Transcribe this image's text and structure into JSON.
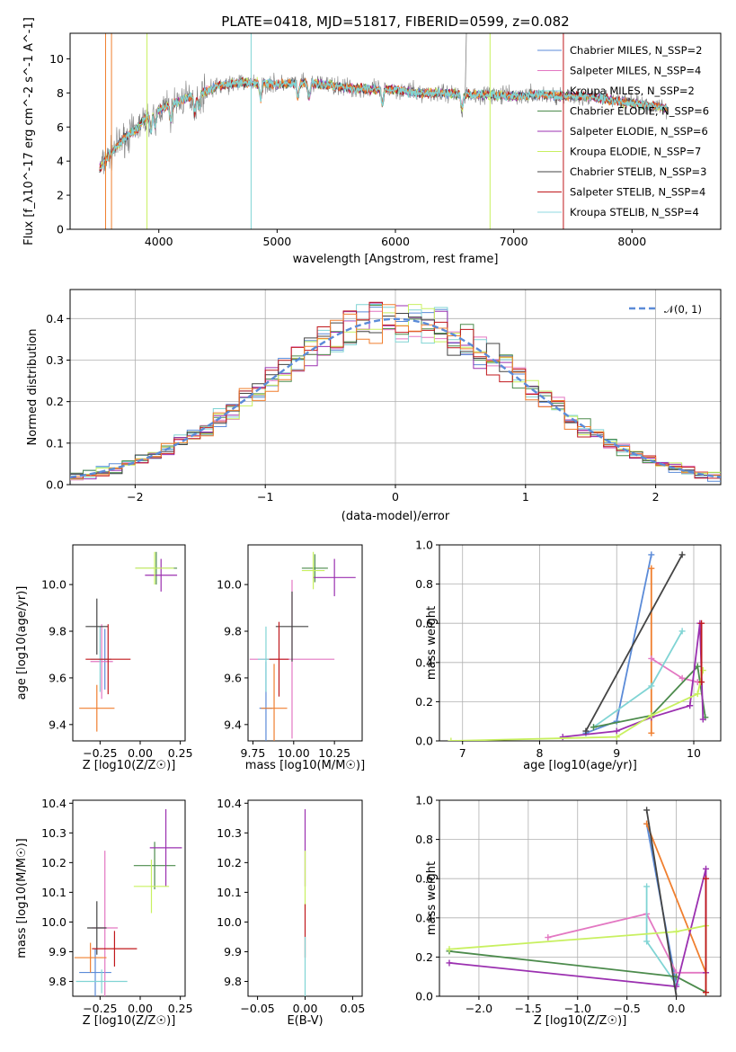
{
  "title": "PLATE=0418, MJD=51817, FIBERID=0599, z=0.082",
  "colors": {
    "c1": "#5b8bd8",
    "c2": "#e377c2",
    "c3": "#80d4d4",
    "c4": "#4c8b4c",
    "c5": "#9b30b0",
    "c6": "#c8f060",
    "c7": "#444444",
    "c8": "#c0181c",
    "c9": "#8fd8e0",
    "orange": "#f07f2f",
    "gray": "#7f7f7f"
  },
  "chart_data": [
    {
      "id": "spectrum",
      "type": "line",
      "xlabel": "wavelength [Angstrom, rest frame]",
      "ylabel": "Flux [f_λ10^-17 erg cm^-2 s^-1 A^-1]",
      "xlim": [
        3250,
        8750
      ],
      "ylim": [
        0,
        11.5
      ],
      "xticks": [
        4000,
        5000,
        6000,
        7000,
        8000
      ],
      "yticks": [
        0,
        2,
        4,
        6,
        8,
        10
      ],
      "grid": false,
      "legend_position": "top-right",
      "legend": [
        {
          "name": "Chabrier MILES, N_SSP=2",
          "color": "#5b8bd8"
        },
        {
          "name": "Salpeter MILES, N_SSP=4",
          "color": "#e377c2"
        },
        {
          "name": "Kroupa MILES, N_SSP=2",
          "color": "#80d4d4"
        },
        {
          "name": "Chabrier ELODIE, N_SSP=6",
          "color": "#4c8b4c"
        },
        {
          "name": "Salpeter ELODIE, N_SSP=6",
          "color": "#9b30b0"
        },
        {
          "name": "Kroupa ELODIE, N_SSP=7",
          "color": "#c8f060"
        },
        {
          "name": "Chabrier STELIB, N_SSP=3",
          "color": "#444444"
        },
        {
          "name": "Salpeter STELIB, N_SSP=4",
          "color": "#c0181c"
        },
        {
          "name": "Kroupa STELIB, N_SSP=4",
          "color": "#8fd8e0"
        }
      ],
      "continuum": [
        [
          3500,
          3.6
        ],
        [
          3600,
          4.5
        ],
        [
          3700,
          5.3
        ],
        [
          3800,
          5.8
        ],
        [
          3900,
          6.6
        ],
        [
          4000,
          7.0
        ],
        [
          4100,
          7.3
        ],
        [
          4200,
          7.6
        ],
        [
          4300,
          7.8
        ],
        [
          4400,
          8.1
        ],
        [
          4500,
          8.4
        ],
        [
          4700,
          8.6
        ],
        [
          4800,
          8.6
        ],
        [
          5000,
          8.5
        ],
        [
          5200,
          8.6
        ],
        [
          5400,
          8.5
        ],
        [
          5600,
          8.3
        ],
        [
          5800,
          8.2
        ],
        [
          6000,
          8.2
        ],
        [
          6200,
          8.0
        ],
        [
          6400,
          8.0
        ],
        [
          6600,
          7.9
        ],
        [
          6800,
          7.9
        ],
        [
          7000,
          7.8
        ],
        [
          7200,
          7.9
        ],
        [
          7400,
          7.8
        ],
        [
          7600,
          7.8
        ],
        [
          7800,
          7.6
        ],
        [
          8000,
          7.4
        ],
        [
          8200,
          7.2
        ],
        [
          8300,
          7.1
        ]
      ]
    },
    {
      "id": "residuals",
      "type": "histogram",
      "xlabel": "(data-model)/error",
      "ylabel": "Normed distribution",
      "xlim": [
        -2.5,
        2.5
      ],
      "ylim": [
        0,
        0.47
      ],
      "xticks": [
        -2,
        -1,
        0,
        1,
        2
      ],
      "yticks": [
        0.0,
        0.1,
        0.2,
        0.3,
        0.4
      ],
      "grid": true,
      "legend_position": "top-right",
      "legend": [
        {
          "name": "𝒩(0, 1)",
          "color": "#5b8bd8",
          "style": "dashed"
        }
      ]
    },
    {
      "id": "age-vs-Z",
      "type": "scatter",
      "xlabel": "Z [log10(Z/Z☉)]",
      "ylabel": "age [log10(age/yr)]",
      "xlim": [
        -0.42,
        0.28
      ],
      "ylim": [
        9.33,
        10.17
      ],
      "xticks": [
        -0.25,
        0.0,
        0.25
      ],
      "yticks": [
        9.4,
        9.6,
        9.8,
        10.0
      ],
      "points": [
        {
          "x": -0.22,
          "y": 9.68,
          "xerr": 0.04,
          "yerr": 0.13,
          "color": "#5b8bd8"
        },
        {
          "x": -0.24,
          "y": 9.67,
          "xerr": 0.07,
          "yerr": 0.16,
          "color": "#e377c2"
        },
        {
          "x": -0.25,
          "y": 9.68,
          "xerr": 0.06,
          "yerr": 0.14,
          "color": "#80d4d4"
        },
        {
          "x": 0.1,
          "y": 10.07,
          "xerr": 0.13,
          "yerr": 0.07,
          "color": "#4c8b4c"
        },
        {
          "x": 0.13,
          "y": 10.04,
          "xerr": 0.1,
          "yerr": 0.07,
          "color": "#9b30b0"
        },
        {
          "x": 0.09,
          "y": 10.07,
          "xerr": 0.12,
          "yerr": 0.07,
          "color": "#c8f060"
        },
        {
          "x": -0.27,
          "y": 9.82,
          "xerr": 0.07,
          "yerr": 0.12,
          "color": "#444444"
        },
        {
          "x": -0.2,
          "y": 9.68,
          "xerr": 0.14,
          "yerr": 0.15,
          "color": "#c0181c"
        },
        {
          "x": -0.27,
          "y": 9.47,
          "xerr": 0.11,
          "yerr": 0.1,
          "color": "#f07f2f"
        }
      ]
    },
    {
      "id": "age-vs-mass",
      "type": "scatter",
      "xlabel": "mass [log10(M/M☉)]",
      "ylabel": "",
      "xlim": [
        9.72,
        10.42
      ],
      "ylim": [
        9.33,
        10.17
      ],
      "xticks": [
        9.75,
        10.0,
        10.25
      ],
      "yticks": [
        9.4,
        9.6,
        9.8,
        10.0
      ],
      "points": [
        {
          "x": 9.83,
          "y": 9.47,
          "xerr": 0.04,
          "yerr": 0.2,
          "color": "#5b8bd8"
        },
        {
          "x": 9.99,
          "y": 9.68,
          "xerr": 0.26,
          "yerr": 0.34,
          "color": "#e377c2"
        },
        {
          "x": 9.83,
          "y": 9.68,
          "xerr": 0.05,
          "yerr": 0.14,
          "color": "#80d4d4"
        },
        {
          "x": 10.13,
          "y": 10.07,
          "xerr": 0.08,
          "yerr": 0.06,
          "color": "#4c8b4c"
        },
        {
          "x": 10.25,
          "y": 10.03,
          "xerr": 0.13,
          "yerr": 0.08,
          "color": "#9b30b0"
        },
        {
          "x": 10.12,
          "y": 10.06,
          "xerr": 0.07,
          "yerr": 0.08,
          "color": "#c8f060"
        },
        {
          "x": 9.99,
          "y": 9.82,
          "xerr": 0.1,
          "yerr": 0.15,
          "color": "#444444"
        },
        {
          "x": 9.91,
          "y": 9.68,
          "xerr": 0.06,
          "yerr": 0.16,
          "color": "#c0181c"
        },
        {
          "x": 9.88,
          "y": 9.47,
          "xerr": 0.08,
          "yerr": 0.19,
          "color": "#f07f2f"
        }
      ]
    },
    {
      "id": "massweight-vs-age",
      "type": "line",
      "xlabel": "age [log10(age/yr)]",
      "ylabel": "mass weight",
      "xlim": [
        6.7,
        10.35
      ],
      "ylim": [
        0,
        1.0
      ],
      "xticks": [
        7,
        8,
        9,
        10
      ],
      "yticks": [
        0.0,
        0.2,
        0.4,
        0.6,
        0.8,
        1.0
      ],
      "grid": true,
      "series": [
        {
          "color": "#5b8bd8",
          "points": [
            [
              8.6,
              0.04
            ],
            [
              9.0,
              0.1
            ],
            [
              9.45,
              0.95
            ]
          ]
        },
        {
          "color": "#f07f2f",
          "points": [
            [
              9.45,
              0.88
            ],
            [
              9.45,
              0.04
            ]
          ]
        },
        {
          "color": "#e377c2",
          "points": [
            [
              9.45,
              0.42
            ],
            [
              9.85,
              0.32
            ],
            [
              10.05,
              0.3
            ]
          ]
        },
        {
          "color": "#80d4d4",
          "points": [
            [
              8.7,
              0.07
            ],
            [
              9.45,
              0.28
            ],
            [
              9.85,
              0.56
            ]
          ]
        },
        {
          "color": "#4c8b4c",
          "points": [
            [
              8.7,
              0.07
            ],
            [
              9.45,
              0.13
            ],
            [
              10.05,
              0.38
            ],
            [
              10.15,
              0.12
            ]
          ]
        },
        {
          "color": "#9b30b0",
          "points": [
            [
              8.3,
              0.02
            ],
            [
              9.0,
              0.05
            ],
            [
              9.45,
              0.12
            ],
            [
              9.95,
              0.18
            ],
            [
              10.08,
              0.6
            ],
            [
              10.12,
              0.11
            ]
          ]
        },
        {
          "color": "#c8f060",
          "points": [
            [
              6.85,
              0.0
            ],
            [
              9.0,
              0.02
            ],
            [
              9.45,
              0.13
            ],
            [
              10.05,
              0.24
            ],
            [
              10.12,
              0.36
            ]
          ]
        },
        {
          "color": "#444444",
          "points": [
            [
              8.6,
              0.05
            ],
            [
              9.85,
              0.95
            ]
          ]
        },
        {
          "color": "#c0181c",
          "points": [
            [
              10.1,
              0.6
            ],
            [
              10.1,
              0.3
            ]
          ]
        }
      ]
    },
    {
      "id": "mass-vs-Z",
      "type": "scatter",
      "xlabel": "Z [log10(Z/Z☉)]",
      "ylabel": "mass [log10(M/M☉)]",
      "xlim": [
        -0.42,
        0.28
      ],
      "ylim": [
        9.75,
        10.41
      ],
      "xticks": [
        -0.25,
        0.0,
        0.25
      ],
      "yticks": [
        9.8,
        9.9,
        10.0,
        10.1,
        10.2,
        10.3,
        10.4
      ],
      "points": [
        {
          "x": -0.28,
          "y": 9.83,
          "xerr": 0.1,
          "yerr": 0.08,
          "color": "#5b8bd8"
        },
        {
          "x": -0.22,
          "y": 9.98,
          "xerr": 0.08,
          "yerr": 0.26,
          "color": "#e377c2"
        },
        {
          "x": -0.24,
          "y": 9.8,
          "xerr": 0.16,
          "yerr": 0.04,
          "color": "#80d4d4"
        },
        {
          "x": 0.09,
          "y": 10.19,
          "xerr": 0.13,
          "yerr": 0.08,
          "color": "#4c8b4c"
        },
        {
          "x": 0.16,
          "y": 10.25,
          "xerr": 0.1,
          "yerr": 0.13,
          "color": "#9b30b0"
        },
        {
          "x": 0.07,
          "y": 10.12,
          "xerr": 0.11,
          "yerr": 0.09,
          "color": "#c8f060"
        },
        {
          "x": -0.27,
          "y": 9.98,
          "xerr": 0.06,
          "yerr": 0.09,
          "color": "#444444"
        },
        {
          "x": -0.16,
          "y": 9.91,
          "xerr": 0.14,
          "yerr": 0.06,
          "color": "#c0181c"
        },
        {
          "x": -0.31,
          "y": 9.88,
          "xerr": 0.1,
          "yerr": 0.05,
          "color": "#f07f2f"
        }
      ]
    },
    {
      "id": "mass-vs-ebv",
      "type": "scatter",
      "xlabel": "E(B-V)",
      "ylabel": "",
      "xlim": [
        -0.06,
        0.06
      ],
      "ylim": [
        9.75,
        10.41
      ],
      "xticks": [
        -0.05,
        0.0,
        0.05
      ],
      "yticks": [
        9.8,
        9.9,
        10.0,
        10.1,
        10.2,
        10.3,
        10.4
      ],
      "points": [
        {
          "x": 0.0,
          "y": 10.25,
          "xerr": 0,
          "yerr": 0.13,
          "color": "#9b30b0"
        },
        {
          "x": 0.0,
          "y": 10.14,
          "xerr": 0,
          "yerr": 0.1,
          "color": "#c8f060"
        },
        {
          "x": 0.0,
          "y": 9.97,
          "xerr": 0,
          "yerr": 0.09,
          "color": "#c0181c"
        },
        {
          "x": 0.0,
          "y": 9.85,
          "xerr": 0,
          "yerr": 0.1,
          "color": "#80d4d4"
        }
      ]
    },
    {
      "id": "massweight-vs-Z",
      "type": "line",
      "xlabel": "Z [log10(Z/Z☉)]",
      "ylabel": "mass weight",
      "xlim": [
        -2.4,
        0.45
      ],
      "ylim": [
        0,
        1.0
      ],
      "xticks": [
        -2.0,
        -1.5,
        -1.0,
        -0.5,
        0.0
      ],
      "yticks": [
        0.0,
        0.2,
        0.4,
        0.6,
        0.8,
        1.0
      ],
      "grid": true,
      "series": [
        {
          "color": "#5b8bd8",
          "points": [
            [
              -0.3,
              0.88
            ],
            [
              0.0,
              0.06
            ]
          ]
        },
        {
          "color": "#f07f2f",
          "points": [
            [
              -0.3,
              0.88
            ],
            [
              0.3,
              0.12
            ]
          ]
        },
        {
          "color": "#e377c2",
          "points": [
            [
              -1.3,
              0.3
            ],
            [
              -0.3,
              0.42
            ],
            [
              0.0,
              0.12
            ],
            [
              0.3,
              0.12
            ]
          ]
        },
        {
          "color": "#80d4d4",
          "points": [
            [
              -0.3,
              0.56
            ],
            [
              -0.3,
              0.28
            ],
            [
              0.0,
              0.06
            ]
          ]
        },
        {
          "color": "#4c8b4c",
          "points": [
            [
              -2.3,
              0.23
            ],
            [
              0.0,
              0.1
            ],
            [
              0.3,
              0.02
            ]
          ]
        },
        {
          "color": "#9b30b0",
          "points": [
            [
              -2.3,
              0.17
            ],
            [
              0.0,
              0.05
            ],
            [
              0.3,
              0.65
            ],
            [
              0.3,
              0.12
            ]
          ]
        },
        {
          "color": "#c8f060",
          "points": [
            [
              -2.3,
              0.24
            ],
            [
              0.0,
              0.33
            ],
            [
              0.3,
              0.36
            ],
            [
              0.3,
              0.02
            ]
          ]
        },
        {
          "color": "#444444",
          "points": [
            [
              -0.3,
              0.95
            ],
            [
              0.0,
              0.0
            ]
          ]
        },
        {
          "color": "#c0181c",
          "points": [
            [
              0.3,
              0.6
            ],
            [
              0.3,
              0.02
            ]
          ]
        }
      ]
    }
  ]
}
